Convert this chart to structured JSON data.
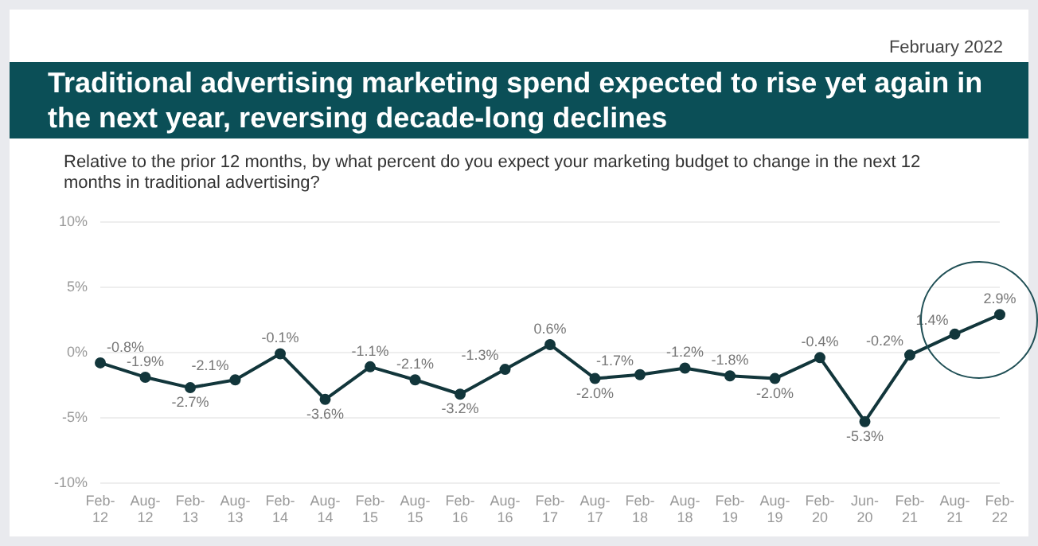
{
  "chart_data": {
    "type": "line",
    "title": "Traditional advertising marketing spend expected to rise yet again in the next year, reversing decade-long declines",
    "subtitle": "Relative to the prior 12 months, by what percent do you expect your marketing budget to change in the next 12 months in traditional advertising?",
    "annotations": [
      "February 2022"
    ],
    "categories": [
      "Feb-12",
      "Aug-12",
      "Feb-13",
      "Aug-13",
      "Feb-14",
      "Aug-14",
      "Feb-15",
      "Aug-15",
      "Feb-16",
      "Aug-16",
      "Feb-17",
      "Aug-17",
      "Feb-18",
      "Aug-18",
      "Feb-19",
      "Aug-19",
      "Feb-20",
      "Jun-20",
      "Feb-21",
      "Aug-21",
      "Feb-22"
    ],
    "series": [
      {
        "color": "#12363b",
        "values": [
          -0.8,
          -1.9,
          -2.7,
          -2.1,
          -0.1,
          -3.6,
          -1.1,
          -2.1,
          -3.2,
          -1.3,
          0.6,
          -2.0,
          -1.7,
          -1.2,
          -1.8,
          -2.0,
          -0.4,
          -5.3,
          -0.2,
          1.4,
          2.9
        ],
        "value_labels": [
          "-0.8%",
          "-1.9%",
          "-2.7%",
          "-2.1%",
          "-0.1%",
          "-3.6%",
          "-1.1%",
          "-2.1%",
          "-3.2%",
          "-1.3%",
          "0.6%",
          "-2.0%",
          "-1.7%",
          "-1.2%",
          "-1.8%",
          "-2.0%",
          "-0.4%",
          "-5.3%",
          "-0.2%",
          "1.4%",
          "2.9%"
        ]
      }
    ],
    "ylim": [
      -10,
      10
    ],
    "yticks": [
      {
        "value": -10,
        "label": "-10%"
      },
      {
        "value": -5,
        "label": "-5%"
      },
      {
        "value": 0,
        "label": "0%"
      },
      {
        "value": 5,
        "label": "5%"
      },
      {
        "value": 10,
        "label": "10%"
      }
    ],
    "grid": "y",
    "legend": false,
    "marker": "circle",
    "line_style": "solid"
  }
}
